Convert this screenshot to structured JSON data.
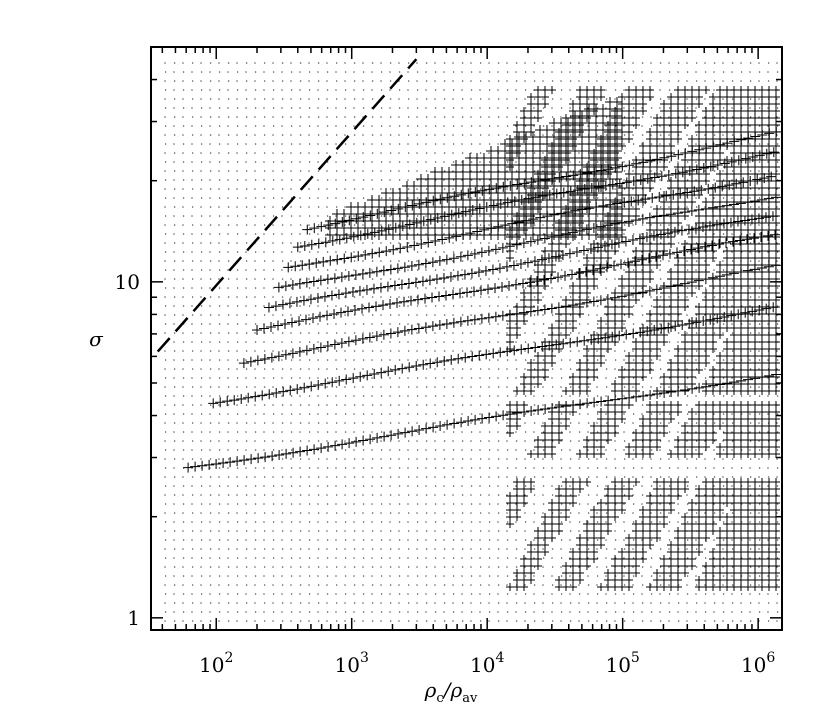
{
  "chart_data": {
    "type": "scatter",
    "title": "",
    "xlabel": {
      "base": "ρ",
      "sub": "c",
      "sep": "/",
      "base2": "ρ",
      "sub2": "av"
    },
    "ylabel": "σ",
    "xscale": "log",
    "yscale": "log",
    "xlim": [
      33,
      1500000
    ],
    "ylim": [
      0.92,
      50
    ],
    "x_ticks": [
      {
        "value": 100,
        "base": "10",
        "exp": "2"
      },
      {
        "value": 1000,
        "base": "10",
        "exp": "3"
      },
      {
        "value": 10000,
        "base": "10",
        "exp": "4"
      },
      {
        "value": 100000,
        "base": "10",
        "exp": "5"
      },
      {
        "value": 1000000,
        "base": "10",
        "exp": "6"
      }
    ],
    "y_ticks": [
      {
        "value": 1,
        "label": "1"
      },
      {
        "value": 10,
        "label": "10"
      }
    ],
    "grid": false,
    "series": [
      {
        "marker": "dot",
        "description_values": "stable configurations (small dots)",
        "region": {
          "x_min": 40,
          "x_max": 1400000,
          "y_min": 0.95,
          "y_max": 45
        }
      },
      {
        "marker": "plus",
        "region_points_sigma_start": [
          2.8,
          4.4,
          5.8,
          7.2,
          8.3,
          9.5,
          11.0,
          12.8,
          14.5
        ],
        "region_points_rho_start": [
          62,
          95,
          160,
          200,
          245,
          290,
          340,
          400,
          470
        ]
      }
    ],
    "dashed_line": {
      "x": [
        37,
        3000
      ],
      "y": [
        6.2,
        46
      ]
    }
  }
}
